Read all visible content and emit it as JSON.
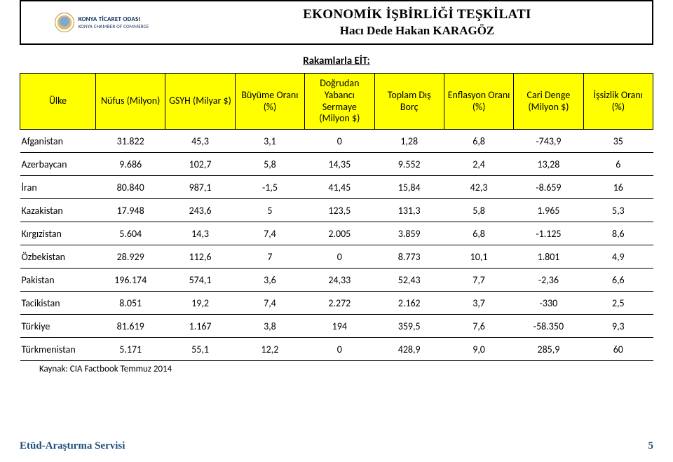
{
  "header": {
    "logo_line1": "KONYA TİCARET ODASI",
    "logo_line2": "KONYA CHAMBER OF COMMERCE",
    "title_line1": "EKONOMİK İŞBİRLİĞİ TEŞKİLATI",
    "title_line2": "Hacı Dede Hakan KARAGÖZ"
  },
  "colors": {
    "header_bg": "#ffff00",
    "border": "#000000",
    "footer_text": "#1f4e79",
    "background": "#ffffff"
  },
  "typography": {
    "body_fontsize": 14,
    "title_fontsize": 19,
    "subtitle_fontsize": 17,
    "footer_fontsize": 15
  },
  "table": {
    "title": "Rakamlarla EİT:",
    "columns": [
      "Ülke",
      "Nüfus (Milyon)",
      "GSYH (Milyar $)",
      "Büyüme Oranı (%)",
      "Doğrudan Yabancı Sermaye (Milyon $)",
      "Toplam Dış Borç",
      "Enflasyon Oranı (%)",
      "Cari Denge (Milyon $)",
      "İşsizlik Oranı (%)"
    ],
    "rows": [
      [
        "Afganistan",
        "31.822",
        "45,3",
        "3,1",
        "0",
        "1,28",
        "6,8",
        "-743,9",
        "35"
      ],
      [
        "Azerbaycan",
        "9.686",
        "102,7",
        "5,8",
        "14,35",
        "9.552",
        "2,4",
        "13,28",
        "6"
      ],
      [
        "İran",
        "80.840",
        "987,1",
        "-1,5",
        "41,45",
        "15,84",
        "42,3",
        "-8.659",
        "16"
      ],
      [
        "Kazakistan",
        "17.948",
        "243,6",
        "5",
        "123,5",
        "131,3",
        "5,8",
        "1.965",
        "5,3"
      ],
      [
        "Kırgızistan",
        "5.604",
        "14,3",
        "7,4",
        "2.005",
        "3.859",
        "6,8",
        "-1.125",
        "8,6"
      ],
      [
        "Özbekistan",
        "28.929",
        "112,6",
        "7",
        "0",
        "8.773",
        "10,1",
        "1.801",
        "4,9"
      ],
      [
        "Pakistan",
        "196.174",
        "574,1",
        "3,6",
        "24,33",
        "52,43",
        "7,7",
        "-2,36",
        "6,6"
      ],
      [
        "Tacikistan",
        "8.051",
        "19,2",
        "7,4",
        "2.272",
        "2.162",
        "3,7",
        "-330",
        "2,5"
      ],
      [
        "Türkiye",
        "81.619",
        "1.167",
        "3,8",
        "194",
        "359,5",
        "7,6",
        "-58.350",
        "9,3"
      ],
      [
        "Türkmenistan",
        "5.171",
        "55,1",
        "12,2",
        "0",
        "428,9",
        "9,0",
        "285,9",
        "60"
      ]
    ],
    "source": "Kaynak: CIA Factbook Temmuz 2014"
  },
  "footer": {
    "left": "Etüd-Araştırma Servisi",
    "page": "5"
  }
}
